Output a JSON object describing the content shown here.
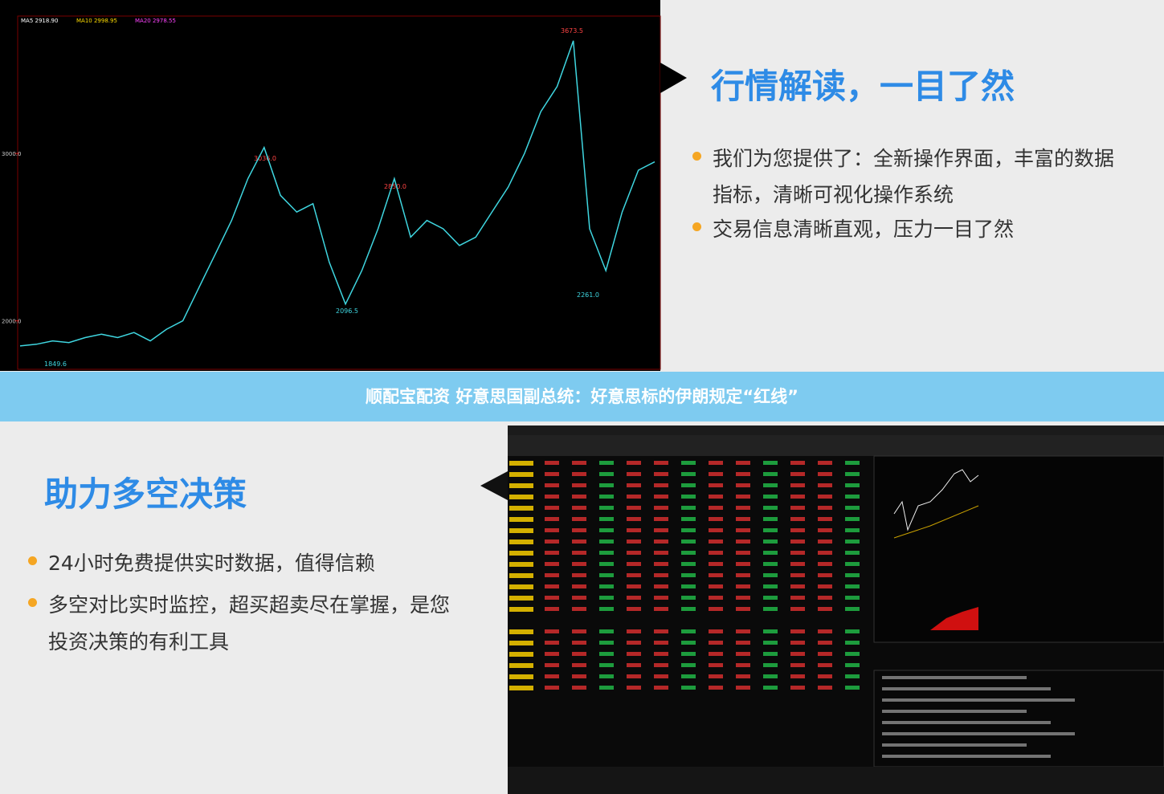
{
  "top": {
    "heading": "行情解读，一目了然",
    "bullets": [
      "我们为您提供了：全新操作界面，丰富的数据",
      "指标，清晰可视化操作系统",
      "交易信息清晰直观，压力一目了然"
    ]
  },
  "chart_data": {
    "type": "line",
    "color": "#3fd6e0",
    "legend": [
      "MA5 2918.90",
      "MA10 2998.95",
      "MA20 2978.55"
    ],
    "annotations": [
      "3673.5",
      "3036.0",
      "2850.0",
      "2096.5",
      "2261.0",
      "1849.6"
    ],
    "values": [
      1850,
      1860,
      1880,
      1870,
      1900,
      1920,
      1900,
      1930,
      1880,
      1950,
      2000,
      2200,
      2400,
      2600,
      2850,
      3036,
      2750,
      2650,
      2700,
      2350,
      2100,
      2300,
      2550,
      2850,
      2500,
      2600,
      2550,
      2450,
      2500,
      2650,
      2800,
      3000,
      3250,
      3400,
      3673.5,
      2550,
      2300,
      2650,
      2900,
      2950
    ],
    "ylim": [
      1720,
      3850
    ],
    "yticks": [
      {
        "value": 2000,
        "label": "2000.0"
      },
      {
        "value": 3000,
        "label": "3000.0"
      }
    ]
  },
  "banner": {
    "text": "顺配宝配资 好意思国副总统：好意思标的伊朗规定“红线”"
  },
  "bottom": {
    "heading": "助力多空决策",
    "bullets": [
      "24小时免费提供实时数据，值得信赖",
      "多空对比实时监控，超买超卖尽在掌握，是您",
      "投资决策的有利工具"
    ]
  }
}
